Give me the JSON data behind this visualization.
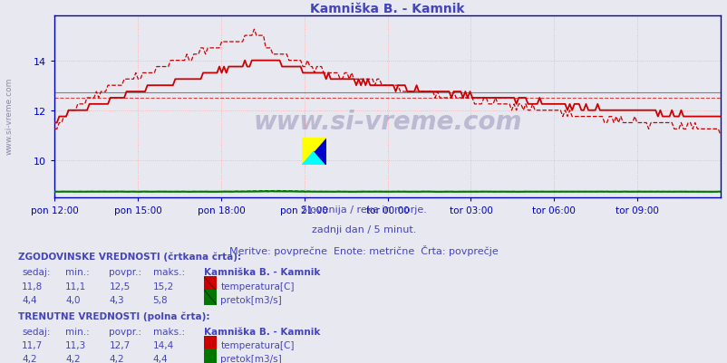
{
  "title": "Kamniška B. - Kamnik",
  "title_color": "#4444bb",
  "bg_color": "#e8e8f0",
  "plot_bg_color": "#e8e8f0",
  "grid_color_h": "#ffaaaa",
  "grid_color_v": "#ffaaaa",
  "axis_color": "#0000bb",
  "x_labels": [
    "pon 12:00",
    "pon 15:00",
    "pon 18:00",
    "pon 21:00",
    "tor 00:00",
    "tor 03:00",
    "tor 06:00",
    "tor 09:00"
  ],
  "y_ticks": [
    10,
    12,
    14
  ],
  "y_min": 8.5,
  "y_max": 15.8,
  "temp_color": "#cc0000",
  "flow_color": "#007700",
  "watermark": "www.si-vreme.com",
  "subtitle1": "Slovenija / reke in morje.",
  "subtitle2": "zadnji dan / 5 minut.",
  "subtitle3": "Meritve: povprečne  Enote: metrične  Črta: povprečje",
  "text_color": "#4444bb",
  "hist_label": "ZGODOVINSKE VREDNOSTI (črtkana črta):",
  "curr_label": "TRENUTNE VREDNOSTI (polna črta):",
  "col_headers": [
    "sedaj:",
    "min.:",
    "povpr.:",
    "maks.:",
    "Kamniška B. - Kamnik"
  ],
  "hist_temp": [
    11.8,
    11.1,
    12.5,
    15.2
  ],
  "hist_flow": [
    4.4,
    4.0,
    4.3,
    5.8
  ],
  "curr_temp": [
    11.7,
    11.3,
    12.7,
    14.4
  ],
  "curr_flow": [
    4.2,
    4.2,
    4.2,
    4.4
  ],
  "temp_avg_solid": 12.7,
  "temp_avg_dashed": 12.5,
  "n_points": 288
}
